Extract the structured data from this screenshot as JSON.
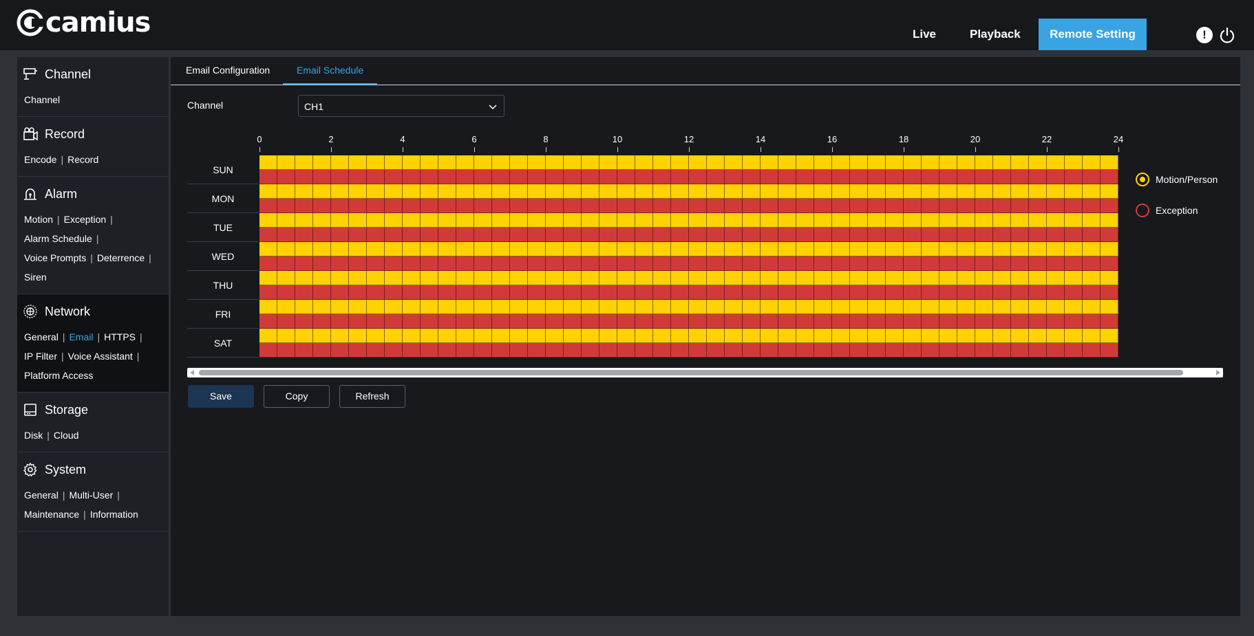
{
  "brand": {
    "name": "camius"
  },
  "topnav": {
    "live": "Live",
    "playback": "Playback",
    "remote": "Remote Setting",
    "alert": "!"
  },
  "sidebar": {
    "channel": {
      "title": "Channel",
      "links": [
        "Channel"
      ]
    },
    "record": {
      "title": "Record",
      "links": [
        "Encode",
        "Record"
      ]
    },
    "alarm": {
      "title": "Alarm",
      "links": [
        "Motion",
        "Exception",
        "Alarm Schedule",
        "Voice Prompts",
        "Deterrence",
        "Siren"
      ]
    },
    "network": {
      "title": "Network",
      "links": [
        "General",
        "Email",
        "HTTPS",
        "IP Filter",
        "Voice Assistant",
        "Platform Access"
      ],
      "active_link": "Email"
    },
    "storage": {
      "title": "Storage",
      "links": [
        "Disk",
        "Cloud"
      ]
    },
    "system": {
      "title": "System",
      "links": [
        "General",
        "Multi-User",
        "Maintenance",
        "Information"
      ]
    }
  },
  "tabs": [
    "Email Configuration",
    "Email Schedule"
  ],
  "active_tab": "Email Schedule",
  "channel": {
    "label": "Channel",
    "value": "CH1"
  },
  "schedule": {
    "hour_labels": [
      "0",
      "2",
      "4",
      "6",
      "8",
      "10",
      "12",
      "14",
      "16",
      "18",
      "20",
      "22",
      "24"
    ],
    "days": [
      "SUN",
      "MON",
      "TUE",
      "WED",
      "THU",
      "FRI",
      "SAT"
    ],
    "slots_per_day": 48,
    "rows_per_day": [
      "Motion/Person",
      "Exception"
    ],
    "all_selected": true
  },
  "legend": [
    {
      "label": "Motion/Person",
      "color": "#ffd200",
      "selected": true
    },
    {
      "label": "Exception",
      "color": "#d23a3a",
      "selected": false
    }
  ],
  "buttons": {
    "save": "Save",
    "copy": "Copy",
    "refresh": "Refresh"
  },
  "colors": {
    "accent": "#3aa3e3",
    "motion": "#ffd200",
    "exception": "#d23a3a"
  }
}
